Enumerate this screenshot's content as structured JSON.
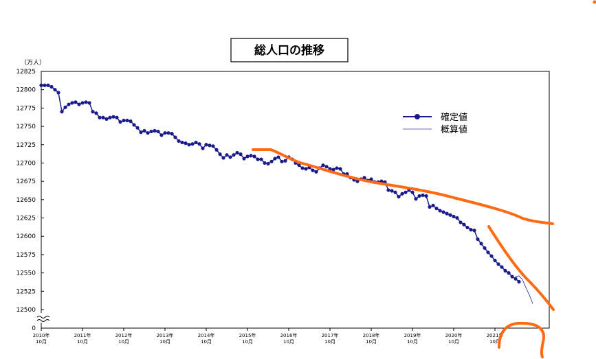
{
  "chart_data": {
    "type": "line",
    "title": "総人口の推移",
    "y_unit_label": "（万人）",
    "ylim": [
      12500,
      12825
    ],
    "y_ticks": [
      "12825",
      "12800",
      "12775",
      "12750",
      "12725",
      "12700",
      "12675",
      "12650",
      "12625",
      "12600",
      "12575",
      "12550",
      "12525",
      "12500"
    ],
    "y_zero_label": "0",
    "x_tick_labels": [
      {
        "year": "2010年",
        "month": "10月"
      },
      {
        "year": "2011年",
        "month": "10月"
      },
      {
        "year": "2012年",
        "month": "10月"
      },
      {
        "year": "2013年",
        "month": "10月"
      },
      {
        "year": "2014年",
        "month": "10月"
      },
      {
        "year": "2015年",
        "month": "10月"
      },
      {
        "year": "2016年",
        "month": "10月"
      },
      {
        "year": "2017年",
        "month": "10月"
      },
      {
        "year": "2018年",
        "month": "10月"
      },
      {
        "year": "2019年",
        "month": "10月"
      },
      {
        "year": "2020年",
        "month": "10月"
      },
      {
        "year": "2021年",
        "month": "10月"
      }
    ],
    "x_start": "2010-10",
    "series": [
      {
        "name": "確定値",
        "style": "line-with-markers",
        "color": "#1a1a8c",
        "values": [
          12806,
          12806,
          12806,
          12804,
          12800,
          12796,
          12770,
          12776,
          12780,
          12782,
          12783,
          12780,
          12782,
          12783,
          12782,
          12770,
          12768,
          12762,
          12762,
          12760,
          12762,
          12763,
          12762,
          12756,
          12758,
          12758,
          12757,
          12752,
          12748,
          12742,
          12744,
          12741,
          12743,
          12744,
          12743,
          12738,
          12741,
          12741,
          12740,
          12735,
          12730,
          12728,
          12727,
          12725,
          12726,
          12728,
          12726,
          12720,
          12725,
          12724,
          12723,
          12718,
          12712,
          12707,
          12711,
          12708,
          12711,
          12714,
          12712,
          12706,
          12709,
          12710,
          12709,
          12705,
          12705,
          12700,
          12699,
          12702,
          12706,
          12708,
          12702,
          12703,
          12708,
          12705,
          12700,
          12697,
          12693,
          12692,
          12694,
          12690,
          12688,
          12693,
          12697,
          12695,
          12692,
          12691,
          12693,
          12692,
          12685,
          12685,
          12680,
          12677,
          12675,
          12678,
          12680,
          12676,
          12678,
          12674,
          12674,
          12675,
          12674,
          12663,
          12662,
          12660,
          12654,
          12658,
          12660,
          12663,
          12660,
          12651,
          12655,
          12656,
          12655,
          12640,
          12642,
          12638,
          12635,
          12633,
          12631,
          12629,
          12627,
          12625,
          12619,
          12616,
          12612,
          12609,
          12608,
          12596,
          12590,
          12584,
          12578,
          12573,
          12567,
          12562,
          12558,
          12553,
          12550,
          12545,
          12542,
          12538
        ]
      },
      {
        "name": "概算値",
        "style": "thin-line",
        "color": "#3a3aaa",
        "start_index": 138,
        "values": [
          12545,
          12546,
          12541,
          12530,
          12520,
          12508
        ]
      }
    ],
    "legend_position": "top-right",
    "grid": false,
    "overlay_color": "#ff6a13"
  }
}
